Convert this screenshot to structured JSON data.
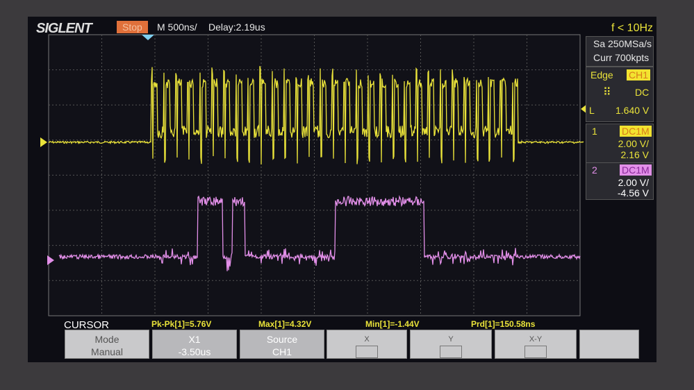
{
  "header": {
    "brand": "SIGLENT",
    "status": "Stop",
    "timebase": "M 500ns/",
    "delay": "Delay:2.19us",
    "trigger_frequency": "f < 10Hz"
  },
  "acquisition": {
    "sample_rate": "Sa 250MSa/s",
    "memory": "Curr 700kpts"
  },
  "trigger": {
    "type": "Edge",
    "source": "CH1",
    "coupling": "DC",
    "level_marker": "L",
    "level": "1.640 V"
  },
  "channels": [
    {
      "number": "1",
      "coupling": "DC1M",
      "scale": "2.00 V/",
      "offset": "2.16 V"
    },
    {
      "number": "2",
      "coupling": "DC1M",
      "scale": "2.00 V/",
      "offset": "-4.56 V"
    }
  ],
  "cursor": {
    "title": "CURSOR",
    "measurements": [
      "Pk-Pk[1]=5.76V",
      "Max[1]=4.32V",
      "Min[1]=-1.44V",
      "Prd[1]=150.58ns"
    ]
  },
  "softkeys": [
    {
      "label": "Mode",
      "value": "Manual"
    },
    {
      "label": "X1",
      "value": "-3.50us"
    },
    {
      "label": "Source",
      "value": "CH1"
    },
    {
      "label": "X"
    },
    {
      "label": "Y"
    },
    {
      "label": "X-Y"
    }
  ]
}
